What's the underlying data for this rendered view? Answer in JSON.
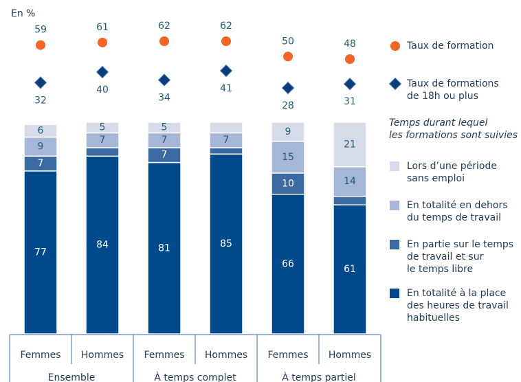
{
  "chart_data": {
    "type": "bar",
    "stacked": true,
    "unit_label": "En %",
    "categories": [
      "Femmes",
      "Hommes",
      "Femmes",
      "Hommes",
      "Femmes",
      "Hommes"
    ],
    "groups": [
      "Ensemble",
      "À temps complet",
      "À temps partiel"
    ],
    "ylim": [
      0,
      100
    ],
    "legend_title": "Temps durant lequel\nles formations sont suivies",
    "series": [
      {
        "name": "En totalité à la place\ndes heures de travail\nhabituelles",
        "color": "#004a8c",
        "values": [
          77,
          84,
          81,
          85,
          66,
          61
        ]
      },
      {
        "name": "En partie sur le temps\nde travail et sur\nle temps libre",
        "color": "#3b6aa3",
        "values": [
          7,
          4,
          7,
          3,
          10,
          4
        ],
        "value_labels": [
          "7",
          null,
          "7",
          null,
          "10",
          null
        ]
      },
      {
        "name": "En totalité en dehors\ndu temps de travail",
        "color": "#a6b6d6",
        "values": [
          9,
          7,
          7,
          7,
          15,
          14
        ]
      },
      {
        "name": "Lors d’une période\nsans emploi",
        "color": "#d6dbea",
        "values": [
          6,
          5,
          5,
          5,
          9,
          21
        ],
        "value_labels": [
          "6",
          "5",
          "5",
          null,
          "9",
          "21"
        ]
      }
    ],
    "marker_series": [
      {
        "name": "Taux de formation",
        "color": "#f26522",
        "shape": "circle",
        "values": [
          59,
          61,
          62,
          62,
          50,
          48
        ]
      },
      {
        "name": "Taux de formations\nde 18h ou plus",
        "color": "#0b3d7a",
        "shape": "diamond",
        "values": [
          32,
          40,
          34,
          41,
          28,
          31
        ]
      }
    ]
  }
}
